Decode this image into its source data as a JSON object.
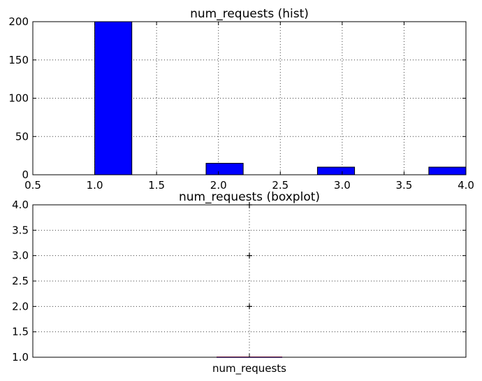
{
  "chart_data": [
    {
      "type": "bar",
      "title": "num_requests (hist)",
      "xlabel": "",
      "ylabel": "",
      "xlim": [
        0.5,
        4.0
      ],
      "ylim": [
        0,
        200
      ],
      "xticks": [
        "0.5",
        "1.0",
        "1.5",
        "2.0",
        "2.5",
        "3.0",
        "3.5",
        "4.0"
      ],
      "yticks": [
        "0",
        "50",
        "100",
        "150",
        "200"
      ],
      "grid": true,
      "bins": [
        {
          "start": 1.0,
          "end": 1.3,
          "value": 200
        },
        {
          "start": 1.3,
          "end": 1.6,
          "value": 0
        },
        {
          "start": 1.6,
          "end": 1.9,
          "value": 0
        },
        {
          "start": 1.9,
          "end": 2.2,
          "value": 15
        },
        {
          "start": 2.2,
          "end": 2.5,
          "value": 0
        },
        {
          "start": 2.5,
          "end": 2.8,
          "value": 0
        },
        {
          "start": 2.8,
          "end": 3.1,
          "value": 10
        },
        {
          "start": 3.1,
          "end": 3.4,
          "value": 0
        },
        {
          "start": 3.4,
          "end": 3.7,
          "value": 0
        },
        {
          "start": 3.7,
          "end": 4.0,
          "value": 10
        }
      ]
    },
    {
      "type": "boxplot",
      "title": "num_requests (boxplot)",
      "categories": [
        "num_requests"
      ],
      "ylim": [
        1.0,
        4.0
      ],
      "yticks": [
        "1.0",
        "1.5",
        "2.0",
        "2.5",
        "3.0",
        "3.5",
        "4.0"
      ],
      "grid": true,
      "box": {
        "q1": 1.0,
        "median": 1.0,
        "q3": 1.0,
        "whisker_low": 1.0,
        "whisker_high": 1.0
      },
      "fliers": [
        2.0,
        3.0,
        4.0
      ]
    }
  ]
}
